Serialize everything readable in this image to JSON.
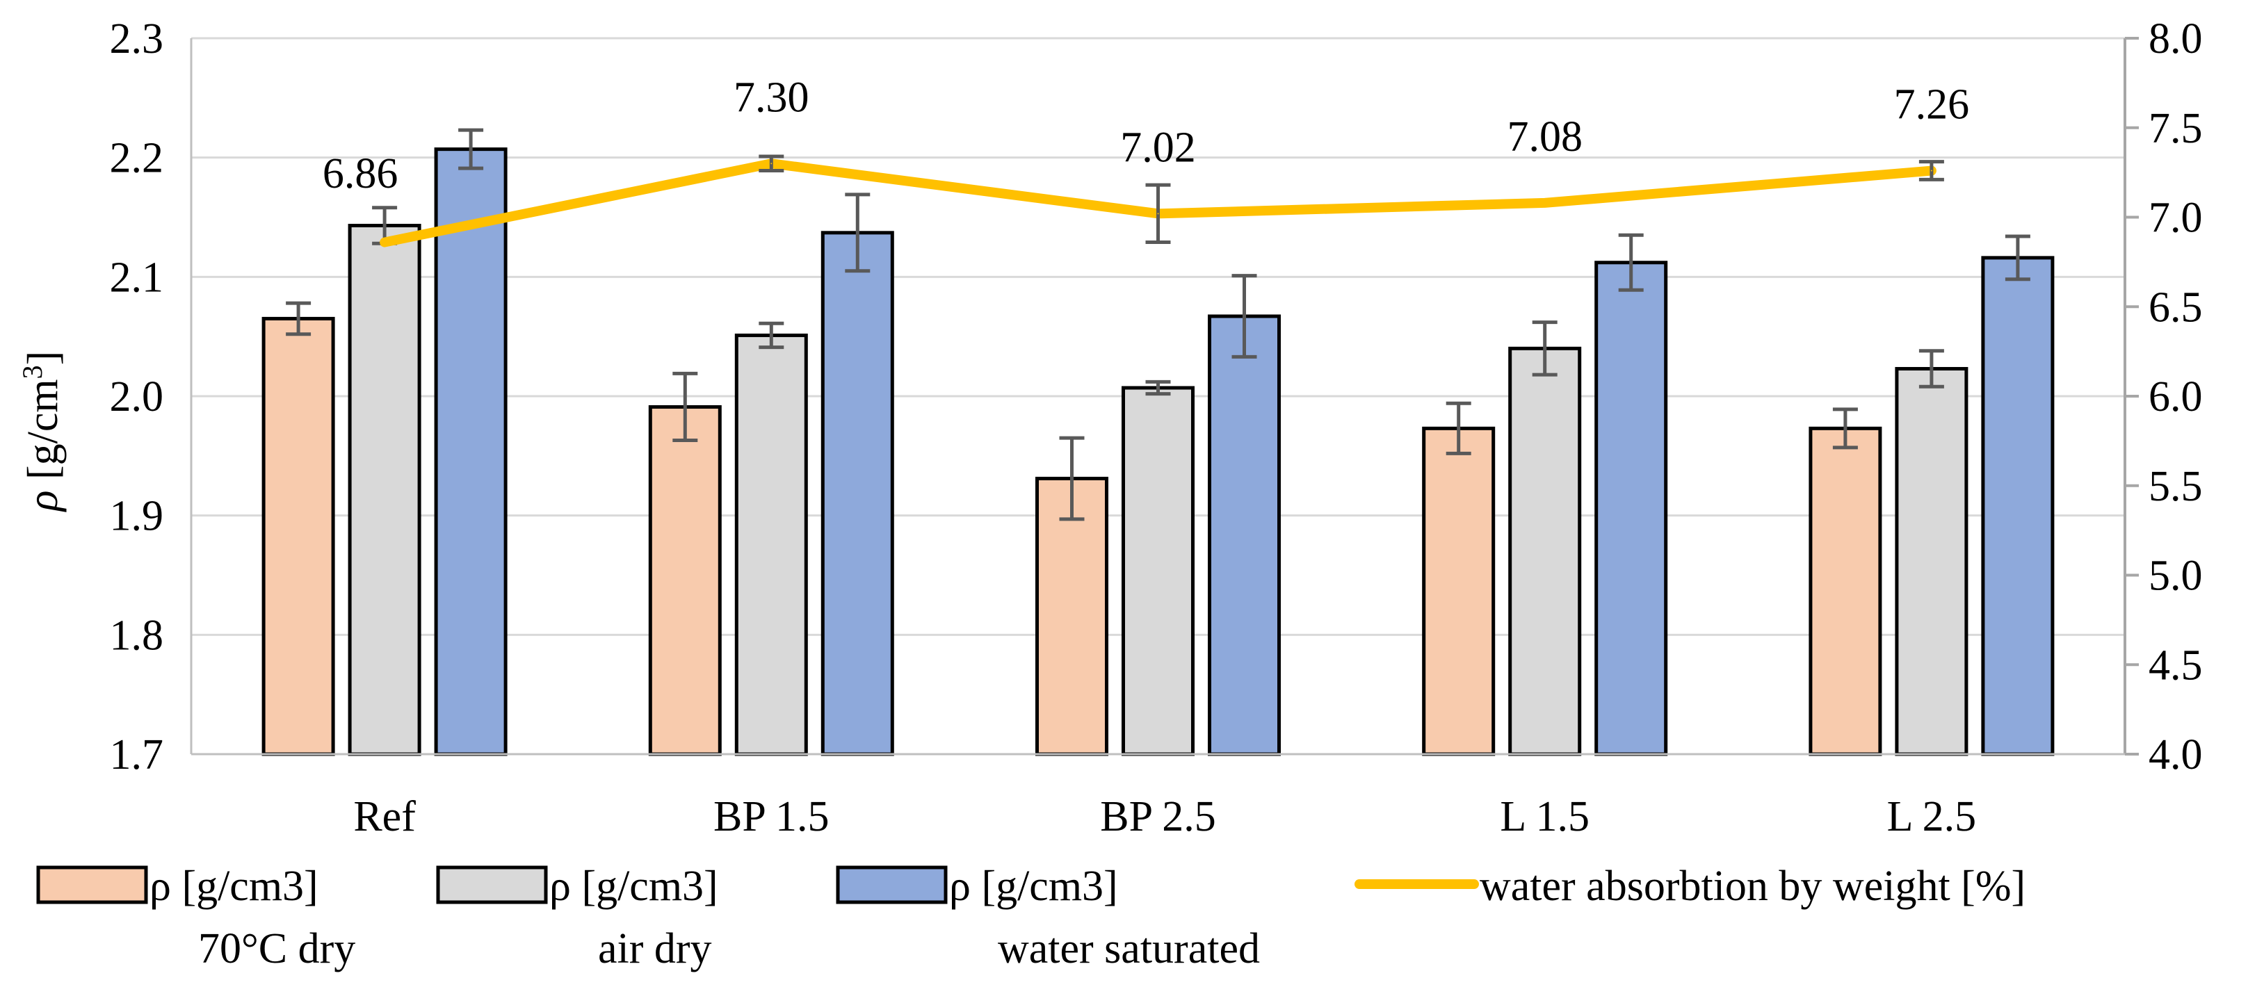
{
  "chart_data": {
    "type": "bar",
    "categories": [
      "Ref",
      "BP 1.5",
      "BP 2.5",
      "L 1.5",
      "L 2.5"
    ],
    "ylabel_symbol": "ρ",
    "ylabel_unit_open": " [g/cm",
    "ylabel_unit_sup": "3",
    "ylabel_unit_close": "]",
    "ylim": [
      1.7,
      2.3
    ],
    "y_ticks": [
      "1.7",
      "1.8",
      "1.9",
      "2.0",
      "2.1",
      "2.2",
      "2.3"
    ],
    "y2lim": [
      4.0,
      8.0
    ],
    "y2_ticks": [
      "4.0",
      "4.5",
      "5.0",
      "5.5",
      "6.0",
      "6.5",
      "7.0",
      "7.5",
      "8.0"
    ],
    "grid": true,
    "legend_position": "bottom",
    "series": [
      {
        "name_line1": "ρ [g/cm3]",
        "name_line2": "70°C dry",
        "axis": "left",
        "kind": "bar",
        "color": "#F8CBAD",
        "values": [
          2.065,
          1.991,
          1.931,
          1.973,
          1.973
        ],
        "errors": [
          0.013,
          0.028,
          0.034,
          0.021,
          0.016
        ]
      },
      {
        "name_line1": "ρ [g/cm3]",
        "name_line2": "air dry",
        "axis": "left",
        "kind": "bar",
        "color": "#D9D9D9",
        "values": [
          2.143,
          2.051,
          2.007,
          2.04,
          2.023
        ],
        "errors": [
          0.015,
          0.01,
          0.005,
          0.022,
          0.015
        ]
      },
      {
        "name_line1": "ρ [g/cm3]",
        "name_line2": "water saturated",
        "axis": "left",
        "kind": "bar",
        "color": "#8EA9DB",
        "values": [
          2.207,
          2.137,
          2.067,
          2.112,
          2.116
        ],
        "errors": [
          0.016,
          0.032,
          0.034,
          0.023,
          0.018
        ]
      },
      {
        "name_line1": "water absorbtion by weight [%]",
        "name_line2": "",
        "axis": "right",
        "kind": "line",
        "color": "#FFC000",
        "values": [
          6.86,
          7.3,
          7.02,
          7.08,
          7.26
        ],
        "errors": [
          0.0,
          0.04,
          0.16,
          0.0,
          0.05
        ],
        "labels": [
          "6.86",
          "7.30",
          "7.02",
          "7.08",
          "7.26"
        ]
      }
    ]
  }
}
